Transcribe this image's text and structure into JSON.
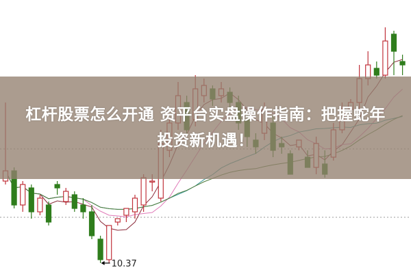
{
  "title": {
    "line1": "杠杆股票怎么开通 资平台实盘操作指南：把握蛇年",
    "line2": "投资新机遇！"
  },
  "chart_data": {
    "type": "candlestick",
    "ylim": [
      10.21,
      14.22
    ],
    "grid": false,
    "reference_lines": [
      12.04,
      11.04
    ],
    "annotation": {
      "label": "10.37",
      "value": 10.37,
      "candle_index": 11
    },
    "colors": {
      "up": "#c0313a",
      "down": "#2f7d1c",
      "ma_lines": [
        "#8b2a3a",
        "#e07ab8",
        "#3a9a9a",
        "#4d7a3a"
      ]
    },
    "moving_averages": [
      5,
      10,
      20,
      30
    ],
    "candles": [
      [
        11.57,
        12.72,
        11.52,
        11.72
      ],
      [
        11.72,
        11.77,
        11.17,
        11.22
      ],
      [
        11.22,
        11.57,
        11.12,
        11.52
      ],
      [
        11.47,
        11.52,
        11.02,
        11.12
      ],
      [
        11.12,
        11.37,
        11.07,
        11.32
      ],
      [
        11.22,
        11.27,
        10.92,
        10.97
      ],
      [
        11.52,
        11.57,
        11.37,
        11.47
      ],
      [
        11.27,
        11.47,
        11.22,
        11.42
      ],
      [
        11.37,
        11.42,
        11.12,
        11.17
      ],
      [
        11.22,
        11.32,
        11.02,
        11.12
      ],
      [
        11.12,
        11.22,
        10.72,
        10.77
      ],
      [
        10.72,
        10.77,
        10.37,
        10.42
      ],
      [
        10.42,
        10.92,
        10.37,
        10.92
      ],
      [
        10.97,
        11.02,
        10.92,
        11.02
      ],
      [
        11.07,
        11.17,
        10.97,
        11.17
      ],
      [
        11.12,
        11.37,
        11.02,
        11.32
      ],
      [
        11.22,
        11.67,
        11.12,
        11.62
      ],
      [
        11.57,
        11.67,
        11.42,
        11.57
      ],
      [
        11.32,
        12.32,
        11.27,
        12.12
      ],
      [
        12.02,
        12.47,
        11.92,
        12.42
      ],
      [
        12.42,
        13.02,
        12.32,
        12.82
      ],
      [
        12.72,
        12.82,
        12.22,
        12.32
      ],
      [
        12.47,
        13.12,
        12.37,
        12.92
      ],
      [
        12.82,
        13.07,
        12.72,
        12.97
      ],
      [
        12.92,
        12.97,
        12.67,
        12.77
      ],
      [
        12.82,
        13.02,
        12.72,
        12.92
      ],
      [
        12.87,
        12.94,
        12.62,
        12.72
      ],
      [
        12.72,
        12.82,
        12.32,
        12.42
      ],
      [
        12.47,
        12.57,
        12.07,
        12.22
      ],
      [
        12.17,
        12.27,
        11.97,
        12.07
      ],
      [
        12.27,
        12.72,
        12.17,
        12.62
      ],
      [
        12.42,
        12.52,
        11.92,
        12.02
      ],
      [
        12.12,
        12.22,
        11.97,
        12.07
      ],
      [
        11.97,
        12.02,
        11.67,
        11.67
      ],
      [
        12.07,
        12.17,
        12.02,
        12.17
      ],
      [
        11.92,
        12.02,
        11.77,
        11.77
      ],
      [
        11.77,
        12.22,
        11.67,
        12.12
      ],
      [
        11.82,
        12.02,
        11.62,
        11.67
      ],
      [
        11.92,
        12.42,
        11.87,
        12.32
      ],
      [
        12.32,
        12.72,
        12.27,
        12.62
      ],
      [
        12.62,
        12.77,
        12.52,
        12.72
      ],
      [
        12.72,
        13.27,
        12.62,
        13.07
      ],
      [
        13.07,
        13.47,
        12.97,
        13.27
      ],
      [
        13.22,
        13.32,
        13.07,
        13.12
      ],
      [
        13.12,
        13.82,
        13.07,
        13.62
      ],
      [
        13.72,
        13.77,
        13.12,
        13.47
      ],
      [
        13.32,
        13.42,
        13.12,
        13.27
      ]
    ]
  }
}
